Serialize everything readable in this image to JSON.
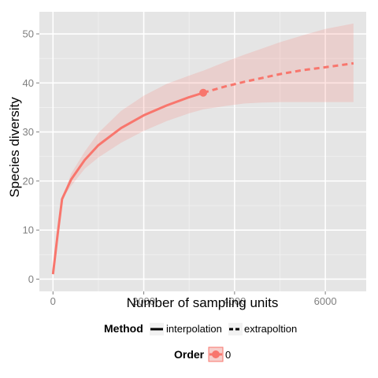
{
  "chart_data": {
    "type": "line",
    "xlabel": "Number of sampling units",
    "ylabel": "Species diversity",
    "xlim": [
      -300,
      6900
    ],
    "ylim": [
      -2.5,
      54.5
    ],
    "x_ticks": [
      0,
      2000,
      4000,
      6000
    ],
    "x_tick_labels": [
      "0",
      "2000",
      "4000",
      "6000"
    ],
    "y_ticks": [
      0,
      10,
      20,
      30,
      40,
      50
    ],
    "y_tick_labels": [
      "0",
      "10",
      "20",
      "30",
      "40",
      "50"
    ],
    "grid": true,
    "series": [
      {
        "name": "0",
        "color": "#f8766d",
        "interpolation": {
          "x": [
            1,
            100,
            200,
            400,
            700,
            1000,
            1500,
            2000,
            2500,
            3000,
            3310
          ],
          "y": [
            1,
            9,
            16.3,
            20.3,
            24.3,
            27.3,
            30.8,
            33.4,
            35.4,
            37.1,
            38
          ]
        },
        "extrapolation": {
          "x": [
            3310,
            3800,
            4200,
            4600,
            5000,
            5500,
            6000,
            6620
          ],
          "y": [
            38,
            39.3,
            40.2,
            41,
            41.8,
            42.6,
            43.2,
            44
          ]
        },
        "observed_point": {
          "x": 3310,
          "y": 38
        },
        "ci_upper": {
          "x": [
            1,
            100,
            200,
            400,
            700,
            1000,
            1500,
            2000,
            2500,
            3000,
            3310,
            3800,
            4200,
            4600,
            5000,
            5500,
            6000,
            6620
          ],
          "y": [
            1,
            9,
            16.3,
            21.5,
            26,
            29.8,
            34.3,
            37.4,
            39.8,
            41.5,
            42.5,
            44.3,
            45.7,
            47,
            48.3,
            49.7,
            51,
            52.1
          ]
        },
        "ci_lower": {
          "x": [
            1,
            100,
            200,
            400,
            700,
            1000,
            1500,
            2000,
            2500,
            3000,
            3310,
            3800,
            4200,
            4600,
            5000,
            5500,
            6000,
            6620
          ],
          "y": [
            1,
            9,
            16.3,
            19,
            22.5,
            24.8,
            27.8,
            30.2,
            32.2,
            33.8,
            34.6,
            35.3,
            35.8,
            36,
            36.1,
            36.1,
            36.1,
            36.1
          ]
        }
      }
    ],
    "legend": {
      "placement": "bottom",
      "method_title": "Method",
      "method_items": [
        "interpolation",
        "extrapoltion"
      ],
      "order_title": "Order",
      "order_items": [
        "0"
      ]
    },
    "colors": {
      "panel_bg": "#e5e5e5",
      "grid_major": "#ffffff",
      "grid_minor": "#f2f2f2",
      "series": "#f8766d",
      "ribbon": "#f8766d"
    }
  }
}
